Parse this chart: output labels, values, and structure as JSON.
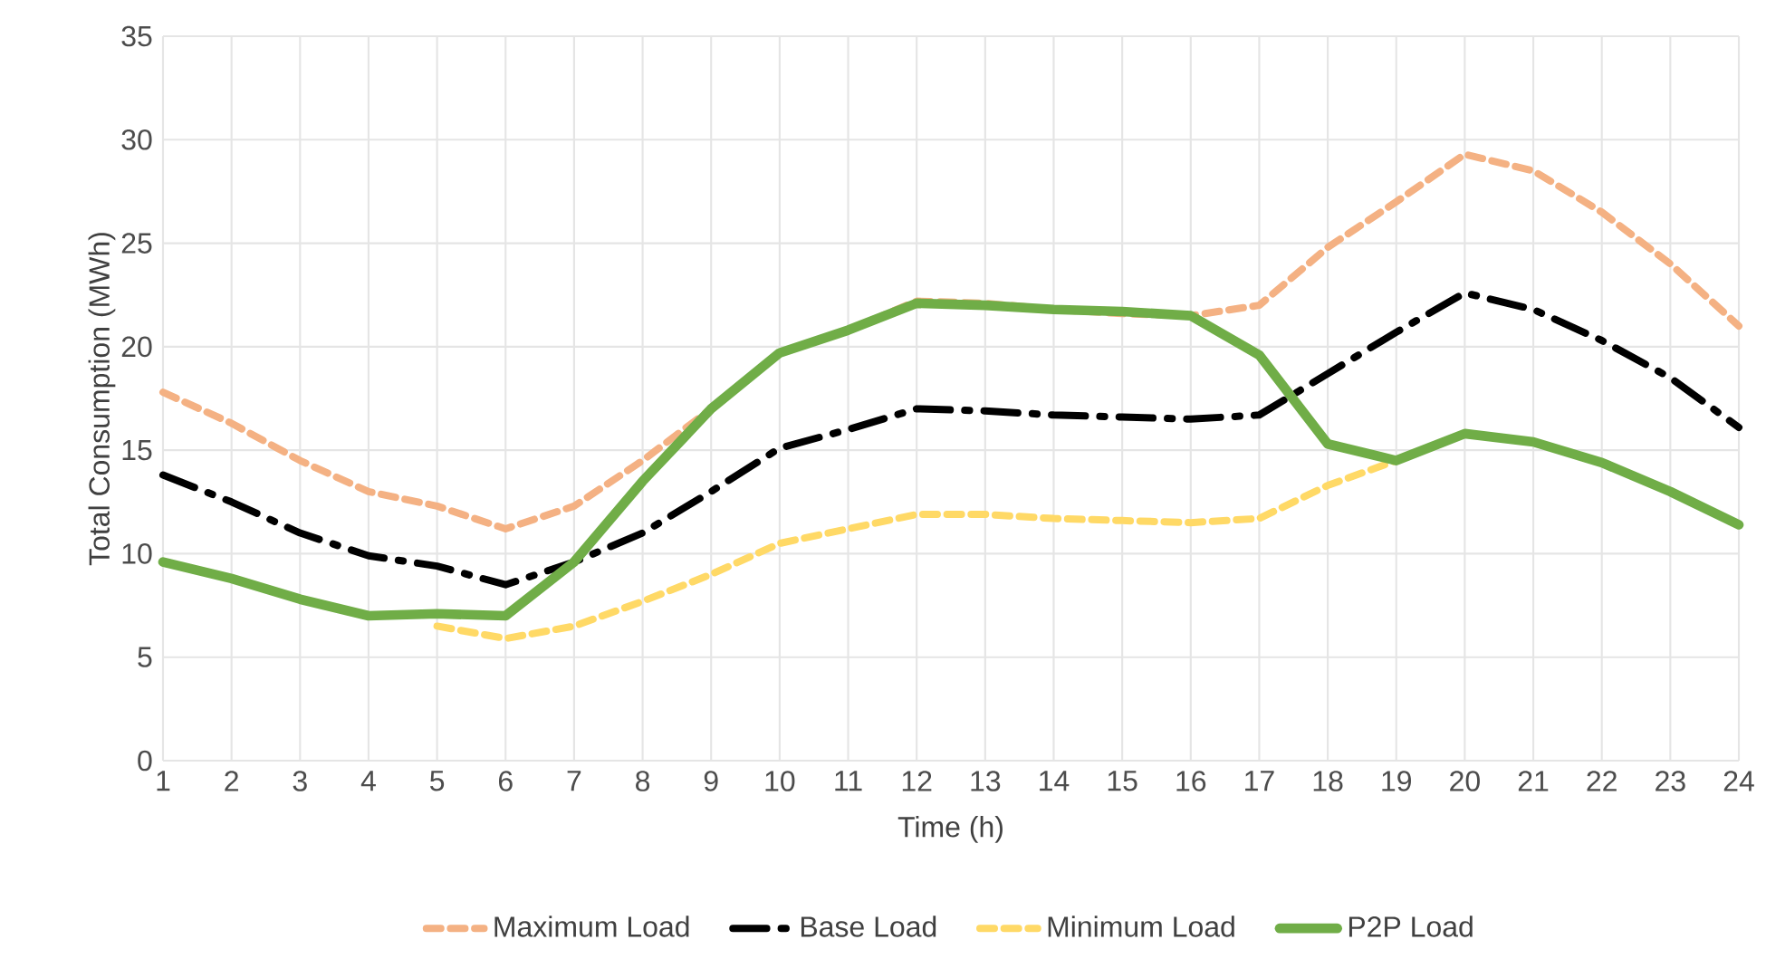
{
  "chart_data": {
    "type": "line",
    "xlabel": "Time (h)",
    "ylabel": "Total Consumption (MWh)",
    "x": [
      1,
      2,
      3,
      4,
      5,
      6,
      7,
      8,
      9,
      10,
      11,
      12,
      13,
      14,
      15,
      16,
      17,
      18,
      19,
      20,
      21,
      22,
      23,
      24
    ],
    "xlim": [
      1,
      24
    ],
    "xticks": [
      1,
      2,
      3,
      4,
      5,
      6,
      7,
      8,
      9,
      10,
      11,
      12,
      13,
      14,
      15,
      16,
      17,
      18,
      19,
      20,
      21,
      22,
      23,
      24
    ],
    "ylim": [
      0,
      35
    ],
    "yticks": [
      0,
      5,
      10,
      15,
      20,
      25,
      30,
      35
    ],
    "grid": true,
    "legend": "bottom",
    "series": [
      {
        "name": "Maximum Load",
        "color": "#f4b183",
        "line_style": "dashed",
        "values": [
          17.8,
          16.3,
          14.5,
          13,
          12.3,
          11.2,
          12.3,
          14.5,
          17,
          19.7,
          20.8,
          22.2,
          22.1,
          21.8,
          21.6,
          21.5,
          22,
          24.8,
          27,
          29.3,
          28.5,
          26.5,
          24,
          21
        ]
      },
      {
        "name": "Base Load",
        "color": "#000000",
        "line_style": "dashdot",
        "values": [
          13.8,
          12.5,
          11,
          9.9,
          9.4,
          8.5,
          9.6,
          11,
          13,
          15.1,
          16,
          17,
          16.9,
          16.7,
          16.6,
          16.5,
          16.7,
          18.7,
          20.7,
          22.6,
          21.8,
          20.3,
          18.5,
          16.1
        ]
      },
      {
        "name": "Minimum Load",
        "color": "#ffd966",
        "line_style": "dashed",
        "values": [
          null,
          null,
          null,
          null,
          6.5,
          5.9,
          6.5,
          7.7,
          9,
          10.5,
          11.2,
          11.9,
          11.9,
          11.7,
          11.6,
          11.5,
          11.7,
          13.3,
          14.5,
          null,
          null,
          null,
          null,
          null
        ]
      },
      {
        "name": "P2P Load",
        "color": "#70ad47",
        "line_style": "solid",
        "values": [
          9.6,
          8.8,
          7.8,
          7,
          7.1,
          7,
          9.6,
          13.5,
          17,
          19.7,
          20.8,
          22.1,
          22,
          21.8,
          21.7,
          21.5,
          19.6,
          15.3,
          14.5,
          15.8,
          15.4,
          14.4,
          13,
          11.4
        ]
      }
    ]
  }
}
